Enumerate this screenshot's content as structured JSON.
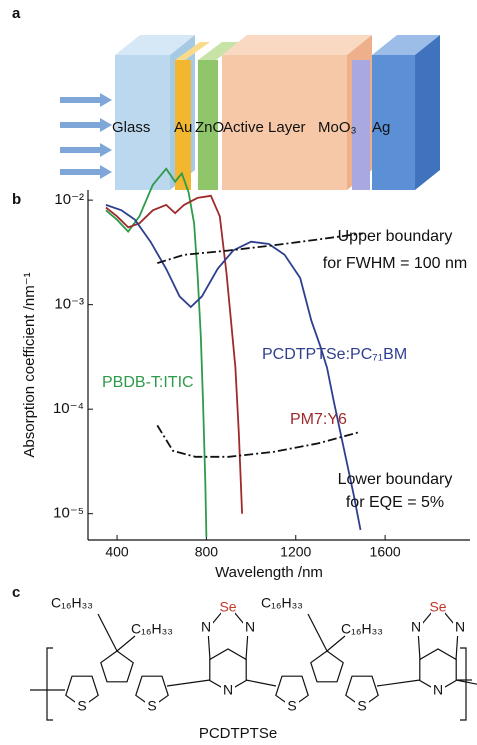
{
  "panel_labels": [
    "a",
    "b",
    "c"
  ],
  "device": {
    "layers": [
      "Glass",
      "Au",
      "ZnO",
      "Active Layer",
      "MoO₃",
      "Ag"
    ]
  },
  "chart_data": {
    "type": "line",
    "xlabel": "Wavelength /nm",
    "ylabel": "Absorption coefficient /nm⁻¹",
    "xlim": [
      270,
      1980
    ],
    "ylim": [
      5.6e-06,
      0.0125
    ],
    "log_y": true,
    "xticks": [
      400,
      800,
      1200,
      1600
    ],
    "yticks": [
      {
        "value": 1e-05,
        "label": "10⁻⁵"
      },
      {
        "value": 0.0001,
        "label": "10⁻⁴"
      },
      {
        "value": 0.001,
        "label": "10⁻³"
      },
      {
        "value": 0.01,
        "label": "10⁻²"
      }
    ],
    "series": [
      {
        "name": "PBDB-T:ITIC",
        "color": "#2e9a4a",
        "style": "solid",
        "x": [
          350,
          400,
          450,
          500,
          560,
          620,
          660,
          690,
          720,
          745,
          760,
          775,
          785,
          795,
          800
        ],
        "values": [
          0.008,
          0.0065,
          0.005,
          0.007,
          0.014,
          0.02,
          0.015,
          0.018,
          0.012,
          0.006,
          0.002,
          0.0005,
          0.00012,
          2e-05,
          6e-06
        ]
      },
      {
        "name": "PM7:Y6",
        "color": "#9e2a2b",
        "style": "solid",
        "x": [
          350,
          400,
          450,
          500,
          560,
          620,
          660,
          700,
          760,
          820,
          860,
          890,
          910,
          930,
          945,
          960
        ],
        "values": [
          0.0085,
          0.007,
          0.0055,
          0.006,
          0.008,
          0.009,
          0.0075,
          0.009,
          0.0105,
          0.011,
          0.007,
          0.002,
          0.0007,
          0.00025,
          6e-05,
          1e-05
        ]
      },
      {
        "name": "PCDTPTSe:PC₇₁BM",
        "color": "#2f3f8f",
        "style": "solid",
        "x": [
          350,
          420,
          480,
          550,
          620,
          680,
          730,
          780,
          850,
          920,
          1000,
          1080,
          1150,
          1220,
          1270,
          1310,
          1340,
          1370,
          1400,
          1430,
          1460,
          1490
        ],
        "values": [
          0.009,
          0.008,
          0.0065,
          0.004,
          0.0022,
          0.0012,
          0.00095,
          0.0012,
          0.0022,
          0.0033,
          0.004,
          0.0038,
          0.003,
          0.0018,
          0.0007,
          0.0004,
          0.00025,
          0.00012,
          6e-05,
          3e-05,
          1.5e-05,
          7e-06
        ]
      },
      {
        "color": "#111111",
        "style": "dashdot",
        "x": [
          580,
          700,
          900,
          1100,
          1300,
          1500
        ],
        "values": [
          0.0025,
          0.003,
          0.0033,
          0.0037,
          0.0042,
          0.0048
        ]
      },
      {
        "color": "#111111",
        "style": "dashdot",
        "x": [
          580,
          650,
          750,
          900,
          1100,
          1300,
          1480
        ],
        "values": [
          7e-05,
          4e-05,
          3.5e-05,
          3.5e-05,
          3.9e-05,
          4.7e-05,
          6e-05
        ]
      }
    ],
    "annotations": [
      "Upper boundary",
      "for FWHM = 100 nm",
      "Lower boundary",
      "for EQE = 5%"
    ]
  },
  "structure": {
    "name": "PCDTPTSe",
    "alkyl": "C₁₆H₃₃",
    "atoms": {
      "S": "S",
      "N": "N",
      "Se": "Se"
    }
  }
}
